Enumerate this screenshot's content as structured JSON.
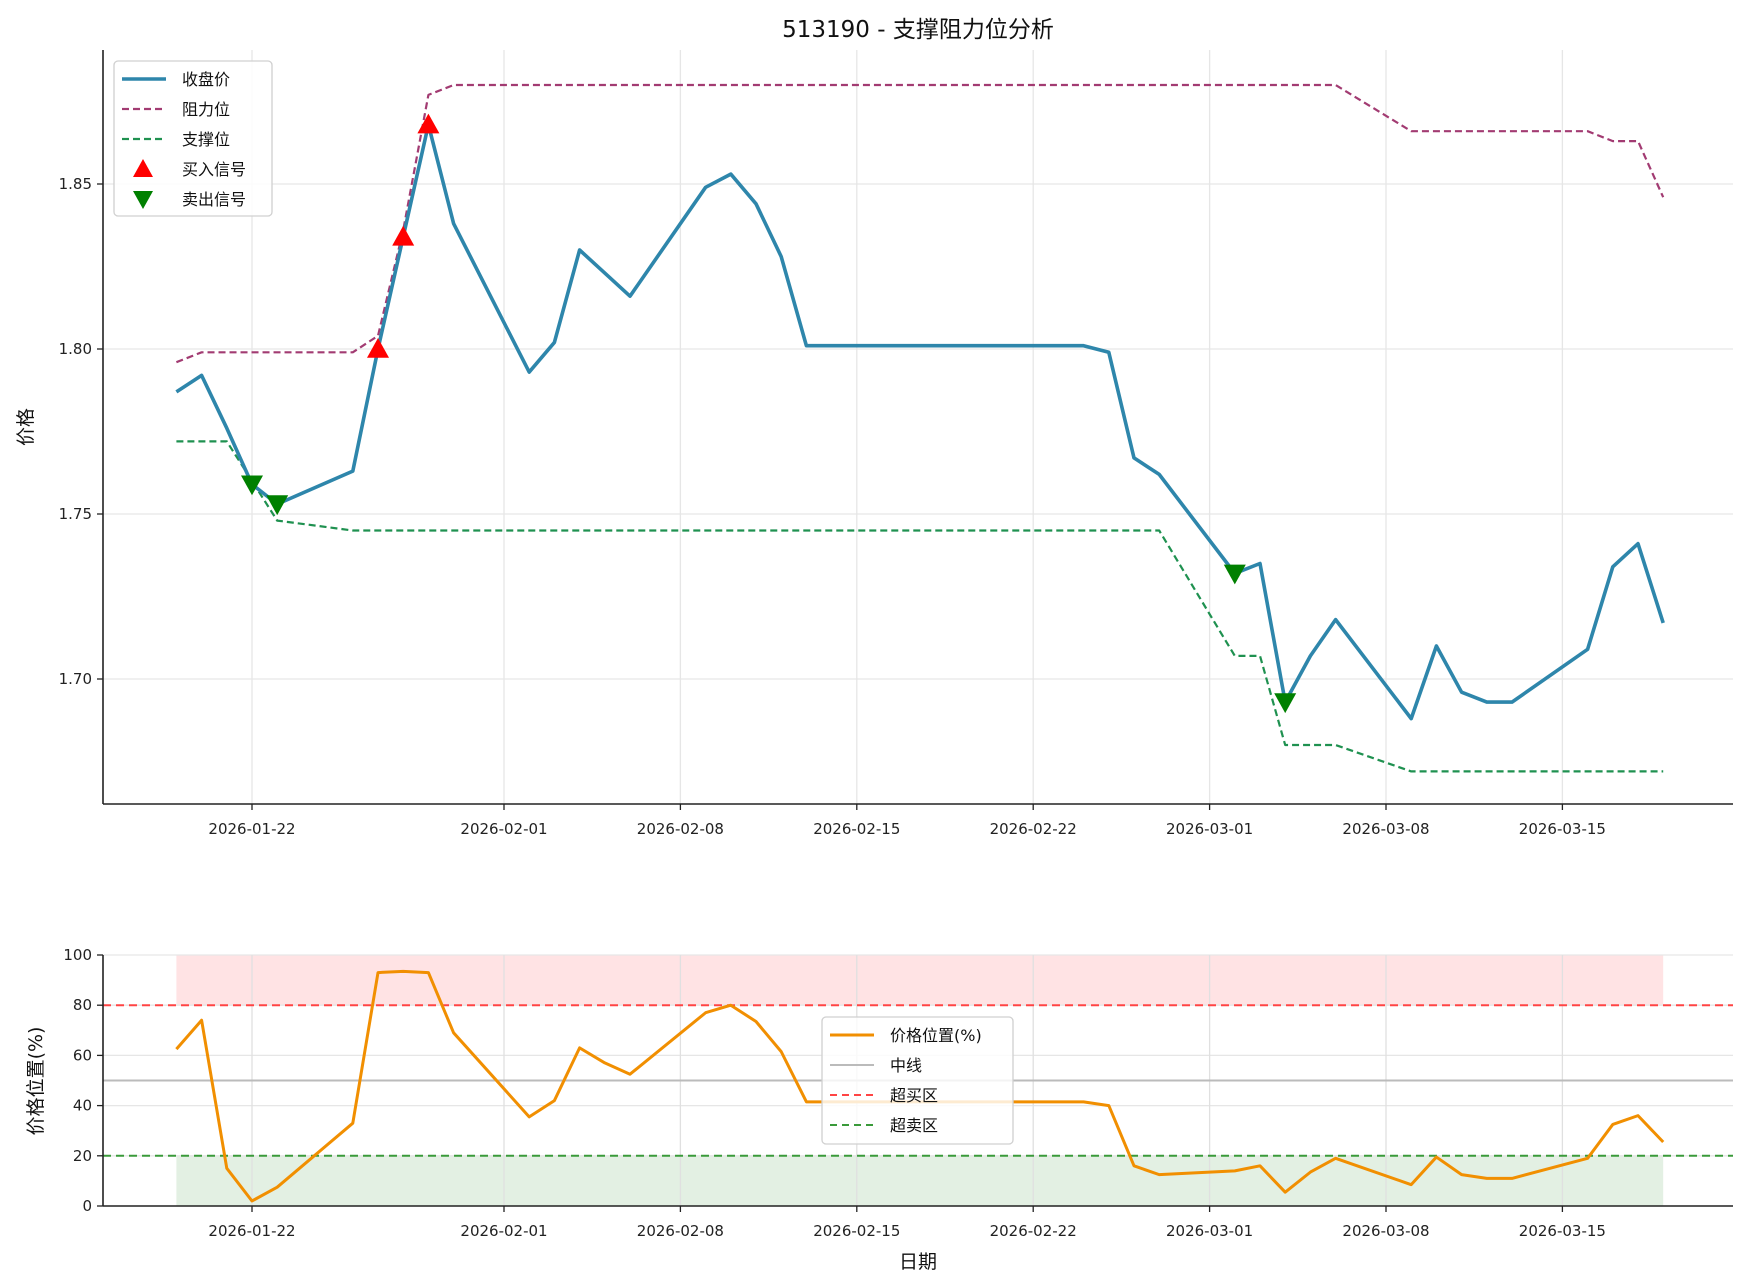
{
  "title": "513190 - 支撑阻力位分析",
  "chart_data": [
    {
      "type": "line",
      "title": "513190 - 支撑阻力位分析",
      "xlabel": "",
      "ylabel": "价格",
      "ylim": [
        1.661,
        1.892
      ],
      "yticks": [
        1.7,
        1.75,
        1.8,
        1.85
      ],
      "ytick_labels": [
        "1.70",
        "1.75",
        "1.80",
        "1.85"
      ],
      "xticks": [
        "2026-01-22",
        "2026-02-01",
        "2026-02-08",
        "2026-02-15",
        "2026-02-22",
        "2026-03-01",
        "2026-03-08",
        "2026-03-15"
      ],
      "grid": true,
      "legend_position": "upper left",
      "x": [
        "2026-01-19",
        "2026-01-20",
        "2026-01-21",
        "2026-01-22",
        "2026-01-23",
        "2026-01-26",
        "2026-01-27",
        "2026-01-28",
        "2026-01-29",
        "2026-01-30",
        "2026-02-02",
        "2026-02-03",
        "2026-02-04",
        "2026-02-05",
        "2026-02-06",
        "2026-02-09",
        "2026-02-10",
        "2026-02-11",
        "2026-02-12",
        "2026-02-13",
        "2026-02-24",
        "2026-02-25",
        "2026-02-26",
        "2026-02-27",
        "2026-03-02",
        "2026-03-03",
        "2026-03-04",
        "2026-03-05",
        "2026-03-06",
        "2026-03-09",
        "2026-03-10",
        "2026-03-11",
        "2026-03-12",
        "2026-03-13",
        "2026-03-16",
        "2026-03-17",
        "2026-03-18",
        "2026-03-19"
      ],
      "series": [
        {
          "name": "收盘价",
          "color": "#2e86ab",
          "style": "solid",
          "values": [
            1.787,
            1.792,
            1.776,
            1.759,
            1.753,
            1.763,
            1.8,
            1.834,
            1.868,
            1.838,
            1.793,
            1.802,
            1.83,
            1.823,
            1.816,
            1.849,
            1.853,
            1.844,
            1.828,
            1.801,
            1.801,
            1.799,
            1.767,
            1.762,
            1.732,
            1.735,
            1.693,
            1.707,
            1.718,
            1.688,
            1.71,
            1.696,
            1.693,
            1.693,
            1.709,
            1.734,
            1.741,
            1.717
          ]
        },
        {
          "name": "阻力位",
          "color": "#a23b72",
          "style": "dashed",
          "values": [
            1.796,
            1.799,
            1.799,
            1.799,
            1.799,
            1.799,
            1.804,
            1.836,
            1.877,
            1.88,
            1.88,
            1.88,
            1.88,
            1.88,
            1.88,
            1.88,
            1.88,
            1.88,
            1.88,
            1.88,
            1.88,
            1.88,
            1.88,
            1.88,
            1.88,
            1.88,
            1.88,
            1.88,
            1.88,
            1.866,
            1.866,
            1.866,
            1.866,
            1.866,
            1.866,
            1.863,
            1.863,
            1.846
          ]
        },
        {
          "name": "支撑位",
          "color": "#1f9150",
          "style": "dashed",
          "values": [
            1.772,
            1.772,
            1.772,
            1.76,
            1.748,
            1.745,
            1.745,
            1.745,
            1.745,
            1.745,
            1.745,
            1.745,
            1.745,
            1.745,
            1.745,
            1.745,
            1.745,
            1.745,
            1.745,
            1.745,
            1.745,
            1.745,
            1.745,
            1.745,
            1.707,
            1.707,
            1.68,
            1.68,
            1.68,
            1.672,
            1.672,
            1.672,
            1.672,
            1.672,
            1.672,
            1.672,
            1.672,
            1.672
          ]
        }
      ],
      "markers": [
        {
          "name": "买入信号",
          "color": "#ff0000",
          "shape": "triangle-up",
          "points": [
            {
              "x": "2026-01-27",
              "y": 1.8
            },
            {
              "x": "2026-01-28",
              "y": 1.834
            },
            {
              "x": "2026-01-29",
              "y": 1.868
            }
          ]
        },
        {
          "name": "卖出信号",
          "color": "#008000",
          "shape": "triangle-down",
          "points": [
            {
              "x": "2026-01-22",
              "y": 1.759
            },
            {
              "x": "2026-01-23",
              "y": 1.753
            },
            {
              "x": "2026-03-02",
              "y": 1.732
            },
            {
              "x": "2026-03-04",
              "y": 1.693
            }
          ]
        }
      ]
    },
    {
      "type": "line",
      "title": "",
      "xlabel": "日期",
      "ylabel": "价格位置(%)",
      "ylim": [
        0,
        100
      ],
      "yticks": [
        0,
        20,
        40,
        60,
        80,
        100
      ],
      "ytick_labels": [
        "0",
        "20",
        "40",
        "60",
        "80",
        "100"
      ],
      "xticks": [
        "2026-01-22",
        "2026-02-01",
        "2026-02-08",
        "2026-02-15",
        "2026-02-22",
        "2026-03-01",
        "2026-03-08",
        "2026-03-15"
      ],
      "grid": true,
      "legend_position": "center",
      "x": [
        "2026-01-19",
        "2026-01-20",
        "2026-01-21",
        "2026-01-22",
        "2026-01-23",
        "2026-01-26",
        "2026-01-27",
        "2026-01-28",
        "2026-01-29",
        "2026-01-30",
        "2026-02-02",
        "2026-02-03",
        "2026-02-04",
        "2026-02-05",
        "2026-02-06",
        "2026-02-09",
        "2026-02-10",
        "2026-02-11",
        "2026-02-12",
        "2026-02-13",
        "2026-02-24",
        "2026-02-25",
        "2026-02-26",
        "2026-02-27",
        "2026-03-02",
        "2026-03-03",
        "2026-03-04",
        "2026-03-05",
        "2026-03-06",
        "2026-03-09",
        "2026-03-10",
        "2026-03-11",
        "2026-03-12",
        "2026-03-13",
        "2026-03-16",
        "2026-03-17",
        "2026-03-18",
        "2026-03-19"
      ],
      "series": [
        {
          "name": "价格位置(%)",
          "color": "#f18f01",
          "style": "solid",
          "values": [
            62.5,
            74,
            15,
            2,
            7.5,
            33,
            93,
            93.5,
            93,
            69,
            35.5,
            42,
            63,
            57,
            52.5,
            77,
            80,
            73.5,
            61.5,
            41.5,
            41.5,
            40,
            16,
            12.5,
            14,
            16,
            5.5,
            13.5,
            19,
            8.5,
            19.5,
            12.5,
            11,
            11,
            19,
            32.5,
            36,
            25.5
          ]
        }
      ],
      "reference_lines": [
        {
          "name": "中线",
          "y": 50,
          "color": "#bbbbbb",
          "style": "solid"
        },
        {
          "name": "超买区",
          "y": 80,
          "color": "#ff4444",
          "style": "dashed"
        },
        {
          "name": "超卖区",
          "y": 20,
          "color": "#3a9a3a",
          "style": "dashed"
        }
      ],
      "bands": [
        {
          "from": 80,
          "to": 100,
          "color": "#ffe3e4"
        },
        {
          "from": 0,
          "to": 20,
          "color": "#e3f0e3"
        }
      ]
    }
  ],
  "legend_top": [
    "收盘价",
    "阻力位",
    "支撑位",
    "买入信号",
    "卖出信号"
  ],
  "legend_bottom": [
    "价格位置(%)",
    "中线",
    "超买区",
    "超卖区"
  ]
}
